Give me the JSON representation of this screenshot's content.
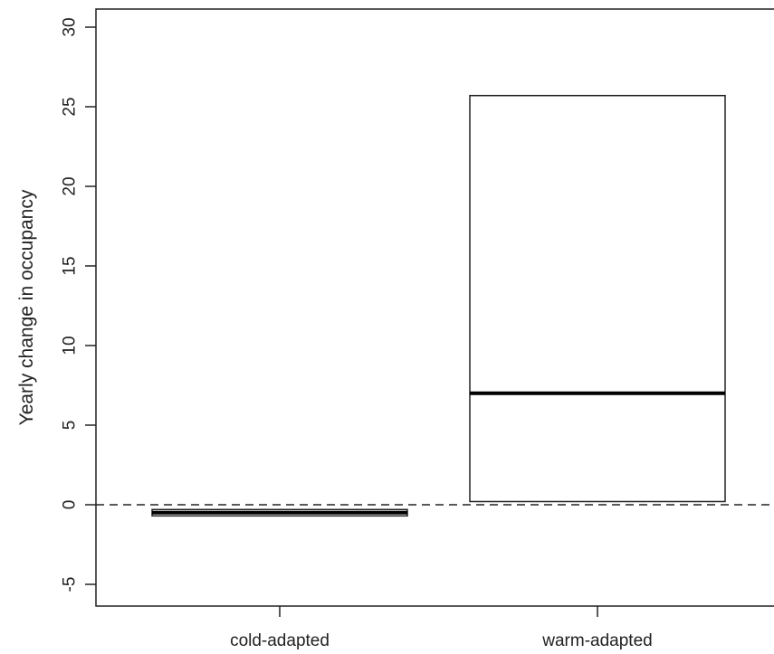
{
  "chart_data": {
    "type": "box",
    "title": "",
    "xlabel": "",
    "ylabel": "Yearly change in occupancy",
    "ylim": [
      -7,
      30.7
    ],
    "y_ticks": [
      -5,
      0,
      5,
      10,
      15,
      20,
      25,
      30
    ],
    "y_tick_labels": [
      "-5",
      "0",
      "5",
      "10",
      "15",
      "20",
      "25",
      "30"
    ],
    "reference_line": {
      "y": 0,
      "style": "dashed"
    },
    "grid": false,
    "legend": "none",
    "categories": [
      "cold-adapted",
      "warm-adapted"
    ],
    "boxes": [
      {
        "category": "cold-adapted",
        "q1": -0.7,
        "median": -0.5,
        "q3": -0.3
      },
      {
        "category": "warm-adapted",
        "q1": 0.2,
        "median": 7.0,
        "q3": 25.7
      }
    ]
  },
  "colors": {
    "axis": "#222222",
    "box_fill": "#ffffff",
    "box_stroke": "#222222",
    "median": "#000000"
  }
}
